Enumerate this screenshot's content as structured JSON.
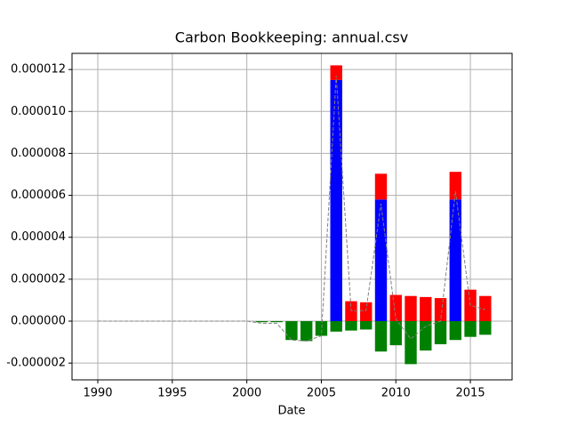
{
  "chart_data": {
    "type": "bar_line",
    "title": "Carbon Bookkeeping: annual.csv",
    "xlabel": "Date",
    "xlim": [
      1988.27,
      2017.8
    ],
    "ylim": [
      -2.8e-06,
      1.277e-05
    ],
    "xticks": [
      1990,
      1995,
      2000,
      2005,
      2010,
      2015
    ],
    "yticks": [
      {
        "value": -2e-06,
        "label": "-0.000002"
      },
      {
        "value": 0,
        "label": "0.000000"
      },
      {
        "value": 2e-06,
        "label": "0.000002"
      },
      {
        "value": 4e-06,
        "label": "0.000004"
      },
      {
        "value": 6e-06,
        "label": "0.000006"
      },
      {
        "value": 8e-06,
        "label": "0.000008"
      },
      {
        "value": 1e-05,
        "label": "0.000010"
      },
      {
        "value": 1.2e-05,
        "label": "0.000012"
      }
    ],
    "grid": true,
    "x": [
      2001,
      2002,
      2003,
      2004,
      2005,
      2006,
      2007,
      2008,
      2009,
      2010,
      2011,
      2012,
      2013,
      2014,
      2015,
      2016
    ],
    "series": [
      {
        "color": "#0000ff",
        "values": [
          0,
          0,
          0,
          0,
          0,
          1.15e-05,
          0,
          0,
          5.8e-06,
          0,
          0,
          0,
          0,
          5.8e-06,
          0,
          0
        ]
      },
      {
        "color": "#ff0000",
        "values": [
          0,
          0,
          0,
          0,
          0,
          7e-07,
          9.5e-07,
          9e-07,
          1.23e-06,
          1.25e-06,
          1.2e-06,
          1.15e-06,
          1.1e-06,
          1.32e-06,
          1.5e-06,
          1.2e-06
        ]
      },
      {
        "color": "#008000",
        "values": [
          -5e-08,
          -5e-08,
          -9e-07,
          -9.5e-07,
          -7e-07,
          -5e-07,
          -4.5e-07,
          -4e-07,
          -1.45e-06,
          -1.15e-06,
          -2.05e-06,
          -1.4e-06,
          -1.1e-06,
          -9e-07,
          -7.5e-07,
          -6.5e-07
        ]
      }
    ],
    "line": {
      "color": "#808080",
      "x": [
        1990,
        1991,
        1992,
        1993,
        1994,
        1995,
        1996,
        1997,
        1998,
        1999,
        2000,
        2001,
        2002,
        2003,
        2004,
        2005,
        2006,
        2007,
        2008,
        2009,
        2010,
        2011,
        2012,
        2013,
        2014,
        2015,
        2016
      ],
      "values": [
        0,
        0,
        0,
        0,
        0,
        0,
        0,
        0,
        0,
        0,
        0,
        -1e-07,
        -1e-07,
        -9e-07,
        -9.5e-07,
        -7e-07,
        1.17e-05,
        5e-07,
        5e-07,
        5.6e-06,
        1e-07,
        -8.5e-07,
        -2.5e-07,
        0,
        6.2e-06,
        7.5e-07,
        5.5e-07
      ]
    }
  }
}
